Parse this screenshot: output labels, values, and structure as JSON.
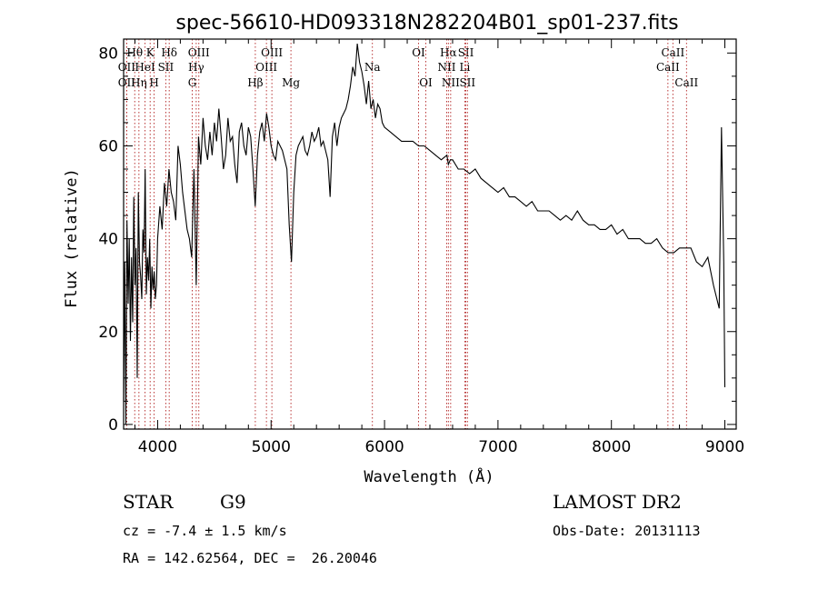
{
  "chart_data": {
    "type": "line",
    "title": "spec-56610-HD093318N282204B01_sp01-237.fits",
    "xlabel": "Wavelength (Å)",
    "ylabel": "Flux (relative)",
    "xlim": [
      3700,
      9100
    ],
    "ylim": [
      -1,
      83
    ],
    "xticks": [
      4000,
      5000,
      6000,
      7000,
      8000,
      9000
    ],
    "yticks": [
      0,
      20,
      40,
      60,
      80
    ],
    "line_color": "#000000",
    "marker_color": "#b22222",
    "series": [
      {
        "x": [
          3700,
          3710,
          3720,
          3730,
          3740,
          3750,
          3760,
          3770,
          3780,
          3790,
          3800,
          3810,
          3820,
          3830,
          3840,
          3850,
          3860,
          3870,
          3880,
          3890,
          3900,
          3910,
          3920,
          3930,
          3940,
          3950,
          3960,
          3970,
          3980,
          3990,
          4000,
          4020,
          4040,
          4060,
          4080,
          4100,
          4120,
          4140,
          4160,
          4180,
          4200,
          4220,
          4240,
          4260,
          4280,
          4300,
          4320,
          4340,
          4360,
          4380,
          4400,
          4420,
          4440,
          4460,
          4480,
          4500,
          4520,
          4540,
          4560,
          4580,
          4600,
          4620,
          4640,
          4660,
          4680,
          4700,
          4720,
          4740,
          4760,
          4780,
          4800,
          4820,
          4840,
          4860,
          4880,
          4900,
          4920,
          4940,
          4960,
          4980,
          5000,
          5020,
          5040,
          5060,
          5080,
          5100,
          5120,
          5140,
          5160,
          5180,
          5200,
          5220,
          5240,
          5260,
          5280,
          5300,
          5320,
          5340,
          5360,
          5380,
          5400,
          5420,
          5440,
          5460,
          5480,
          5500,
          5520,
          5540,
          5560,
          5580,
          5600,
          5620,
          5640,
          5660,
          5680,
          5700,
          5720,
          5740,
          5760,
          5780,
          5800,
          5820,
          5840,
          5860,
          5880,
          5900,
          5920,
          5940,
          5960,
          5980,
          6000,
          6050,
          6100,
          6150,
          6200,
          6250,
          6300,
          6350,
          6400,
          6450,
          6500,
          6550,
          6563,
          6580,
          6600,
          6650,
          6700,
          6750,
          6800,
          6850,
          6900,
          6950,
          7000,
          7050,
          7100,
          7150,
          7200,
          7250,
          7300,
          7350,
          7400,
          7450,
          7500,
          7550,
          7600,
          7650,
          7700,
          7750,
          7800,
          7850,
          7900,
          7950,
          8000,
          8050,
          8100,
          8150,
          8200,
          8250,
          8300,
          8350,
          8400,
          8450,
          8500,
          8550,
          8600,
          8650,
          8700,
          8750,
          8800,
          8850,
          8900,
          8950,
          8970,
          8990,
          9000
        ],
        "y": [
          5,
          35,
          0,
          44,
          26,
          40,
          18,
          36,
          22,
          49,
          30,
          38,
          10,
          50,
          35,
          32,
          27,
          42,
          37,
          55,
          28,
          36,
          31,
          40,
          25,
          34,
          29,
          33,
          27,
          30,
          40,
          47,
          42,
          52,
          47,
          55,
          50,
          48,
          44,
          60,
          56,
          50,
          46,
          42,
          40,
          36,
          55,
          30,
          62,
          56,
          66,
          60,
          57,
          63,
          58,
          65,
          61,
          68,
          62,
          55,
          58,
          66,
          61,
          62,
          56,
          52,
          63,
          65,
          60,
          58,
          64,
          62,
          55,
          47,
          58,
          63,
          65,
          61,
          67,
          64,
          60,
          58,
          57,
          61,
          60,
          59,
          57,
          55,
          43,
          35,
          50,
          58,
          60,
          61,
          62,
          59,
          58,
          60,
          63,
          61,
          62,
          64,
          60,
          61,
          59,
          57,
          49,
          62,
          65,
          60,
          64,
          66,
          67,
          68,
          70,
          73,
          77,
          75,
          82,
          78,
          76,
          73,
          69,
          74,
          68,
          70,
          66,
          69,
          68,
          65,
          64,
          63,
          62,
          61,
          61,
          61,
          60,
          60,
          59,
          58,
          57,
          58,
          56,
          57,
          57,
          55,
          55,
          54,
          55,
          53,
          52,
          51,
          50,
          51,
          49,
          49,
          48,
          47,
          48,
          46,
          46,
          46,
          45,
          44,
          45,
          44,
          46,
          44,
          43,
          43,
          42,
          42,
          43,
          41,
          42,
          40,
          40,
          40,
          39,
          39,
          40,
          38,
          37,
          37,
          38,
          38,
          38,
          35,
          34,
          36,
          30,
          25,
          64,
          35,
          8
        ]
      }
    ],
    "line_markers": [
      {
        "label": "Hθ",
        "x": 3798,
        "row": 1
      },
      {
        "label": "K",
        "x": 3934,
        "row": 1
      },
      {
        "label": "Hδ",
        "x": 4102,
        "row": 1
      },
      {
        "label": "OIII",
        "x": 4363,
        "row": 1
      },
      {
        "label": "OIII",
        "x": 5007,
        "row": 1
      },
      {
        "label": "OI",
        "x": 6300,
        "row": 1
      },
      {
        "label": "Hα",
        "x": 6563,
        "row": 1
      },
      {
        "label": "SII",
        "x": 6717,
        "row": 1
      },
      {
        "label": "CaII",
        "x": 8542,
        "row": 1
      },
      {
        "label": "OII",
        "x": 3727,
        "row": 2
      },
      {
        "label": "HeI",
        "x": 3889,
        "row": 2
      },
      {
        "label": "SII",
        "x": 4072,
        "row": 2
      },
      {
        "label": "Hγ",
        "x": 4340,
        "row": 2
      },
      {
        "label": "OIII",
        "x": 4959,
        "row": 2
      },
      {
        "label": "Na",
        "x": 5893,
        "row": 2
      },
      {
        "label": "NII",
        "x": 6548,
        "row": 2
      },
      {
        "label": "Li",
        "x": 6708,
        "row": 2
      },
      {
        "label": "CaII",
        "x": 8498,
        "row": 2
      },
      {
        "label": "OII",
        "x": 3727,
        "row": 3
      },
      {
        "label": "Hη",
        "x": 3835,
        "row": 3
      },
      {
        "label": "H",
        "x": 3969,
        "row": 3
      },
      {
        "label": "G",
        "x": 4305,
        "row": 3
      },
      {
        "label": "Hβ",
        "x": 4861,
        "row": 3
      },
      {
        "label": "Mg",
        "x": 5175,
        "row": 3
      },
      {
        "label": "OI",
        "x": 6364,
        "row": 3
      },
      {
        "label": "NII",
        "x": 6583,
        "row": 3
      },
      {
        "label": "SII",
        "x": 6731,
        "row": 3
      },
      {
        "label": "CaII",
        "x": 8662,
        "row": 3
      }
    ]
  },
  "info": {
    "object_class": "STAR",
    "subclass": "G9",
    "survey": "LAMOST DR2",
    "cz": "cz = -7.4 ± 1.5 km/s",
    "obs_date": "Obs-Date: 20131113",
    "coords": "RA = 142.62564, DEC =  26.20046"
  }
}
